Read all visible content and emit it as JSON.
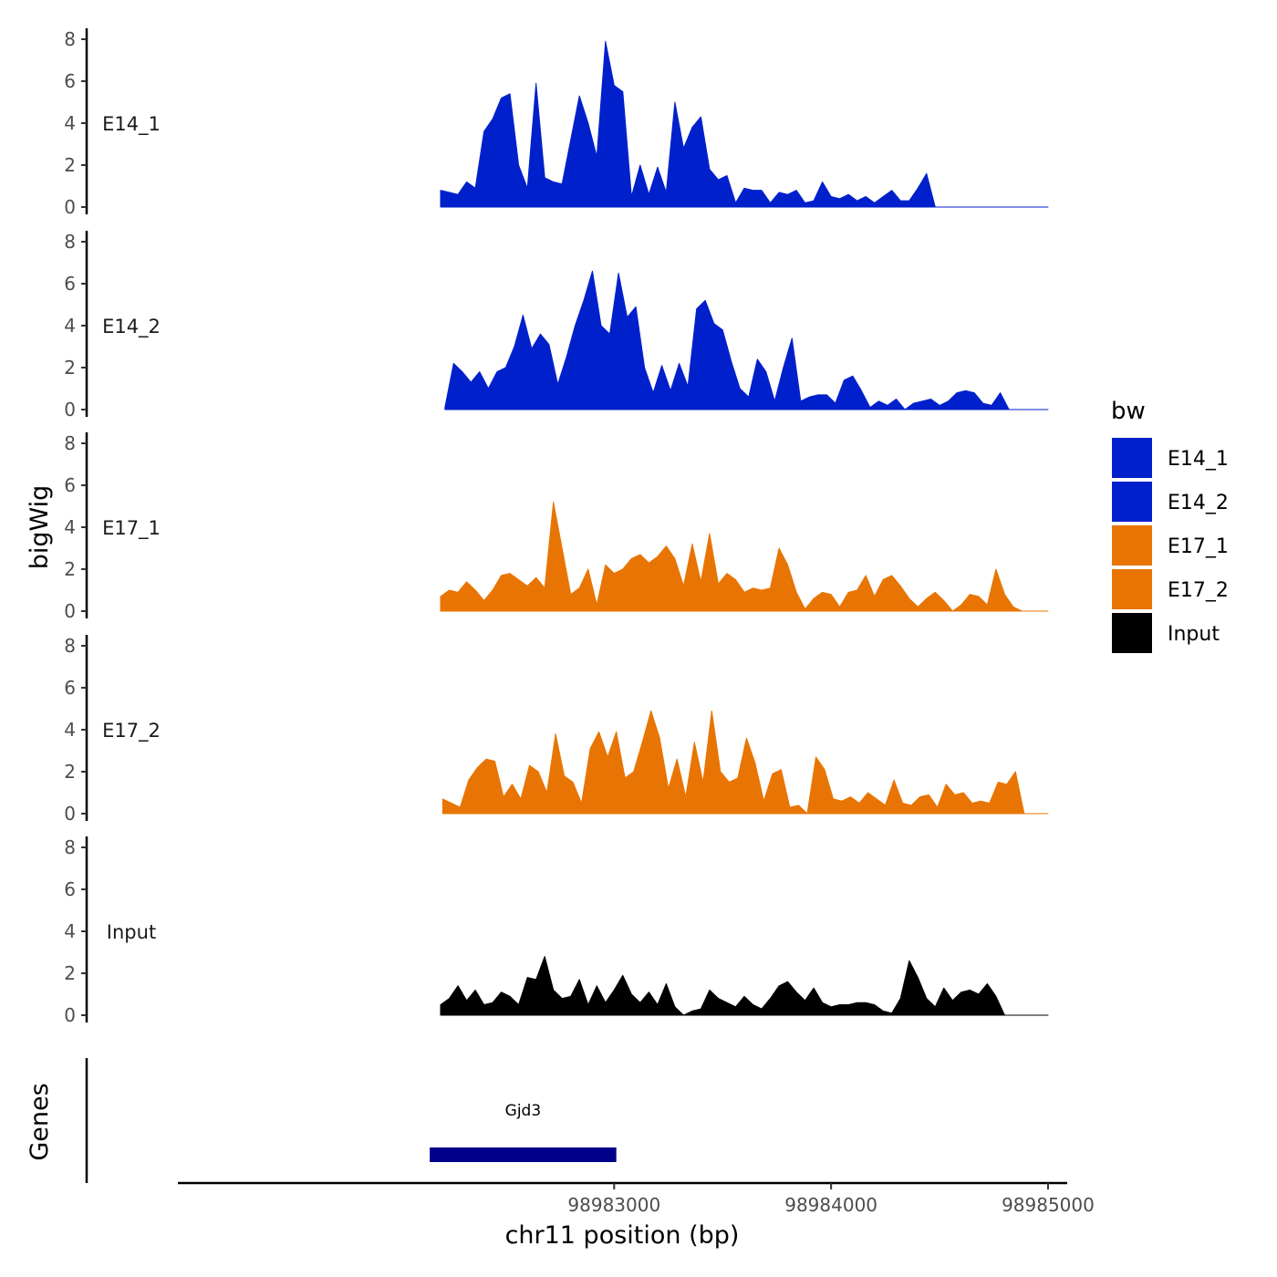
{
  "chart_data": {
    "type": "area",
    "y_title": "bigWig",
    "genes_title": "Genes",
    "x_title": "chr11 position (bp)",
    "x_range": [
      98981010,
      98985080
    ],
    "x_ticks": [
      98983000,
      98984000,
      98985000
    ],
    "x_tick_labels": [
      "98983000",
      "98984000",
      "98985000"
    ],
    "y_range": [
      0,
      8.5
    ],
    "y_ticks": [
      0,
      2,
      4,
      6,
      8
    ],
    "y_tick_labels": [
      "0",
      "2",
      "4",
      "6",
      "8"
    ],
    "legend": {
      "title": "bw",
      "entries": [
        {
          "label": "E14_1",
          "color": "#0020CC"
        },
        {
          "label": "E14_2",
          "color": "#0020CC"
        },
        {
          "label": "E17_1",
          "color": "#E87503"
        },
        {
          "label": "E17_2",
          "color": "#E87503"
        },
        {
          "label": "Input",
          "color": "#000000"
        }
      ]
    },
    "tracks": [
      {
        "name": "E14_1",
        "label": "E14_1",
        "color": "#0020CC",
        "x": [
          98982200,
          98982240,
          98982280,
          98982320,
          98982360,
          98982400,
          98982440,
          98982480,
          98982520,
          98982560,
          98982600,
          98982640,
          98982680,
          98982720,
          98982760,
          98982800,
          98982840,
          98982880,
          98982920,
          98982960,
          98983000,
          98983040,
          98983080,
          98983120,
          98983160,
          98983200,
          98983240,
          98983280,
          98983320,
          98983360,
          98983400,
          98983440,
          98983480,
          98983520,
          98983560,
          98983600,
          98983640,
          98983680,
          98983720,
          98983760,
          98983800,
          98983840,
          98983880,
          98983920,
          98983960,
          98984000,
          98984040,
          98984080,
          98984120,
          98984160,
          98984200,
          98984240,
          98984280,
          98984320,
          98984360,
          98984400,
          98984440,
          98984480,
          98984520,
          98984560,
          98984600,
          98984640,
          98984680,
          98984720,
          98984760,
          98984800,
          98984840,
          98984880,
          98984920,
          98984960,
          98985000
        ],
        "y": [
          0.8,
          0.7,
          0.6,
          1.2,
          0.9,
          3.6,
          4.2,
          5.2,
          5.4,
          2.0,
          0.9,
          5.9,
          1.4,
          1.2,
          1.1,
          3.2,
          5.3,
          4.0,
          2.4,
          7.9,
          5.8,
          5.5,
          0.5,
          2.0,
          0.6,
          1.9,
          0.7,
          5.0,
          2.8,
          3.8,
          4.3,
          1.8,
          1.3,
          1.5,
          0.2,
          0.9,
          0.8,
          0.8,
          0.2,
          0.7,
          0.6,
          0.8,
          0.2,
          0.3,
          1.2,
          0.5,
          0.4,
          0.6,
          0.3,
          0.5,
          0.2,
          0.5,
          0.8,
          0.3,
          0.3,
          0.9,
          1.6,
          0.0,
          0.0,
          0.0,
          0.0,
          0.0,
          0.0,
          0.0,
          0.0,
          0.0,
          0.0,
          0.0,
          0.0,
          0.0,
          0.0
        ]
      },
      {
        "name": "E14_2",
        "label": "E14_2",
        "color": "#0020CC",
        "x": [
          98982220,
          98982260,
          98982300,
          98982340,
          98982380,
          98982420,
          98982460,
          98982500,
          98982540,
          98982580,
          98982620,
          98982660,
          98982700,
          98982740,
          98982780,
          98982820,
          98982860,
          98982900,
          98982940,
          98982980,
          98983020,
          98983060,
          98983100,
          98983140,
          98983180,
          98983220,
          98983260,
          98983300,
          98983340,
          98983380,
          98983420,
          98983460,
          98983500,
          98983540,
          98983580,
          98983620,
          98983660,
          98983700,
          98983740,
          98983780,
          98983820,
          98983860,
          98983900,
          98983940,
          98983980,
          98984020,
          98984060,
          98984100,
          98984140,
          98984180,
          98984220,
          98984260,
          98984300,
          98984340,
          98984380,
          98984420,
          98984460,
          98984500,
          98984540,
          98984580,
          98984620,
          98984660,
          98984700,
          98984740,
          98984780,
          98984820,
          98984860,
          98984900,
          98984940,
          98984980,
          98985000
        ],
        "y": [
          0.1,
          2.2,
          1.8,
          1.3,
          1.8,
          1.0,
          1.8,
          2.0,
          3.0,
          4.5,
          2.9,
          3.6,
          3.1,
          1.2,
          2.5,
          4.0,
          5.2,
          6.6,
          4.0,
          3.6,
          6.5,
          4.4,
          4.9,
          2.0,
          0.8,
          2.1,
          0.9,
          2.2,
          1.1,
          4.8,
          5.2,
          4.1,
          3.8,
          2.3,
          1.0,
          0.6,
          2.4,
          1.8,
          0.4,
          2.0,
          3.4,
          0.4,
          0.6,
          0.7,
          0.7,
          0.3,
          1.4,
          1.6,
          0.9,
          0.1,
          0.4,
          0.2,
          0.5,
          0.0,
          0.3,
          0.4,
          0.5,
          0.2,
          0.4,
          0.8,
          0.9,
          0.8,
          0.3,
          0.2,
          0.8,
          0.0,
          0.0,
          0.0,
          0.0,
          0.0,
          0.0
        ]
      },
      {
        "name": "E17_1",
        "label": "E17_1",
        "color": "#E87503",
        "x": [
          98982200,
          98982240,
          98982280,
          98982320,
          98982360,
          98982400,
          98982440,
          98982480,
          98982520,
          98982560,
          98982600,
          98982640,
          98982680,
          98982720,
          98982760,
          98982800,
          98982840,
          98982880,
          98982920,
          98982960,
          98983000,
          98983040,
          98983080,
          98983120,
          98983160,
          98983200,
          98983240,
          98983280,
          98983320,
          98983360,
          98983400,
          98983440,
          98983480,
          98983520,
          98983560,
          98983600,
          98983640,
          98983680,
          98983720,
          98983760,
          98983800,
          98983840,
          98983880,
          98983920,
          98983960,
          98984000,
          98984040,
          98984080,
          98984120,
          98984160,
          98984200,
          98984240,
          98984280,
          98984320,
          98984360,
          98984400,
          98984440,
          98984480,
          98984520,
          98984560,
          98984600,
          98984640,
          98984680,
          98984720,
          98984760,
          98984800,
          98984840,
          98984880,
          98984920,
          98984960,
          98985000
        ],
        "y": [
          0.7,
          1.0,
          0.9,
          1.4,
          1.0,
          0.5,
          1.0,
          1.7,
          1.8,
          1.5,
          1.2,
          1.6,
          1.1,
          5.2,
          3.0,
          0.8,
          1.1,
          2.0,
          0.3,
          2.2,
          1.8,
          2.0,
          2.5,
          2.7,
          2.3,
          2.6,
          3.1,
          2.5,
          1.2,
          3.2,
          1.4,
          3.7,
          1.3,
          1.8,
          1.5,
          0.9,
          1.1,
          1.0,
          1.1,
          3.0,
          2.2,
          0.9,
          0.1,
          0.6,
          0.9,
          0.8,
          0.2,
          0.9,
          1.0,
          1.7,
          0.7,
          1.5,
          1.7,
          1.2,
          0.6,
          0.2,
          0.6,
          0.9,
          0.5,
          0.0,
          0.3,
          0.8,
          0.7,
          0.3,
          2.0,
          0.8,
          0.2,
          0.0,
          0.0,
          0.0,
          0.0
        ]
      },
      {
        "name": "E17_2",
        "label": "E17_2",
        "color": "#E87503",
        "x": [
          98982210,
          98982250,
          98982290,
          98982330,
          98982370,
          98982410,
          98982450,
          98982490,
          98982530,
          98982570,
          98982610,
          98982650,
          98982690,
          98982730,
          98982770,
          98982810,
          98982850,
          98982890,
          98982930,
          98982970,
          98983010,
          98983050,
          98983090,
          98983130,
          98983170,
          98983210,
          98983250,
          98983290,
          98983330,
          98983370,
          98983410,
          98983450,
          98983490,
          98983530,
          98983570,
          98983610,
          98983650,
          98983690,
          98983730,
          98983770,
          98983810,
          98983850,
          98983890,
          98983930,
          98983970,
          98984010,
          98984050,
          98984090,
          98984130,
          98984170,
          98984210,
          98984250,
          98984290,
          98984330,
          98984370,
          98984410,
          98984450,
          98984490,
          98984530,
          98984570,
          98984610,
          98984650,
          98984690,
          98984730,
          98984770,
          98984810,
          98984850,
          98984890,
          98984930,
          98984970,
          98985000
        ],
        "y": [
          0.7,
          0.5,
          0.3,
          1.6,
          2.2,
          2.6,
          2.5,
          0.8,
          1.4,
          0.7,
          2.3,
          2.0,
          1.0,
          3.8,
          1.8,
          1.5,
          0.5,
          3.1,
          3.9,
          2.7,
          3.9,
          1.7,
          2.0,
          3.4,
          4.9,
          3.6,
          1.2,
          2.6,
          0.8,
          3.4,
          1.5,
          4.9,
          2.0,
          1.5,
          1.7,
          3.6,
          2.4,
          0.6,
          1.9,
          2.1,
          0.3,
          0.4,
          0.0,
          2.7,
          2.1,
          0.7,
          0.6,
          0.8,
          0.5,
          1.0,
          0.7,
          0.4,
          1.6,
          0.5,
          0.4,
          0.8,
          0.9,
          0.3,
          1.4,
          0.9,
          1.0,
          0.5,
          0.6,
          0.5,
          1.5,
          1.4,
          2.0,
          0.0,
          0.0,
          0.0,
          0.0
        ]
      },
      {
        "name": "Input",
        "label": "Input",
        "color": "#000000",
        "x": [
          98982200,
          98982240,
          98982280,
          98982320,
          98982360,
          98982400,
          98982440,
          98982480,
          98982520,
          98982560,
          98982600,
          98982640,
          98982680,
          98982720,
          98982760,
          98982800,
          98982840,
          98982880,
          98982920,
          98982960,
          98983000,
          98983040,
          98983080,
          98983120,
          98983160,
          98983200,
          98983240,
          98983280,
          98983320,
          98983360,
          98983400,
          98983440,
          98983480,
          98983520,
          98983560,
          98983600,
          98983640,
          98983680,
          98983720,
          98983760,
          98983800,
          98983840,
          98983880,
          98983920,
          98983960,
          98984000,
          98984040,
          98984080,
          98984120,
          98984160,
          98984200,
          98984240,
          98984280,
          98984320,
          98984360,
          98984400,
          98984440,
          98984480,
          98984520,
          98984560,
          98984600,
          98984640,
          98984680,
          98984720,
          98984760,
          98984800,
          98984840,
          98984880,
          98984920,
          98984960,
          98985000
        ],
        "y": [
          0.5,
          0.8,
          1.4,
          0.7,
          1.2,
          0.5,
          0.6,
          1.1,
          0.9,
          0.5,
          1.8,
          1.7,
          2.8,
          1.2,
          0.8,
          0.9,
          1.7,
          0.5,
          1.4,
          0.6,
          1.2,
          1.9,
          1.0,
          0.6,
          1.1,
          0.5,
          1.5,
          0.4,
          0.0,
          0.2,
          0.3,
          1.2,
          0.8,
          0.6,
          0.4,
          0.9,
          0.5,
          0.3,
          0.8,
          1.4,
          1.6,
          1.1,
          0.7,
          1.3,
          0.6,
          0.4,
          0.5,
          0.5,
          0.6,
          0.6,
          0.5,
          0.2,
          0.1,
          0.8,
          2.6,
          1.8,
          0.8,
          0.4,
          1.3,
          0.7,
          1.1,
          1.2,
          1.0,
          1.5,
          0.9,
          0.0,
          0.0,
          0.0,
          0.0,
          0.0,
          0.0
        ]
      }
    ],
    "genes": [
      {
        "name": "Gjd3",
        "start": 98982150,
        "end": 98983010,
        "color": "#00008B"
      }
    ]
  }
}
